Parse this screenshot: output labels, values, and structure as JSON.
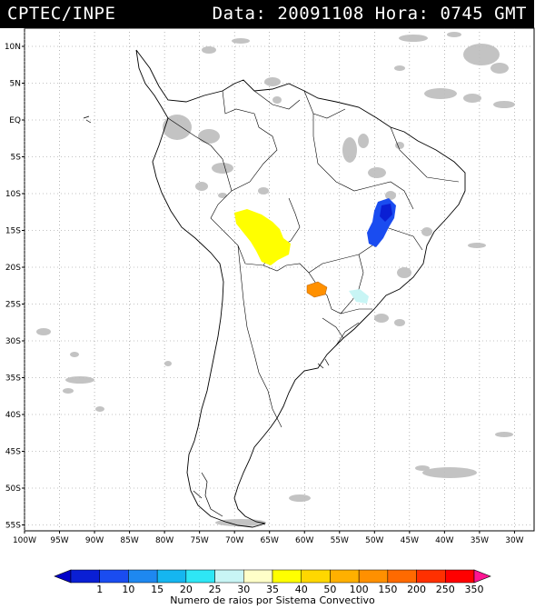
{
  "header": {
    "left_title": "CPTEC/INPE",
    "data_label": "Data:",
    "date": "20091108",
    "hora_label": "Hora:",
    "time": "0745",
    "tz": "GMT"
  },
  "axes": {
    "lat_labels": [
      "10N",
      "5N",
      "EQ",
      "5S",
      "10S",
      "15S",
      "20S",
      "25S",
      "30S",
      "35S",
      "40S",
      "45S",
      "50S",
      "55S"
    ],
    "lon_labels": [
      "100W",
      "95W",
      "90W",
      "85W",
      "80W",
      "75W",
      "70W",
      "65W",
      "60W",
      "55W",
      "50W",
      "45W",
      "40W",
      "35W",
      "30W"
    ]
  },
  "legend": {
    "caption": "Numero de raios por Sistema Convectivo",
    "bins": [
      {
        "label": "1",
        "color": "#0a1fd4"
      },
      {
        "label": "10",
        "color": "#1a4cf0"
      },
      {
        "label": "15",
        "color": "#1e88f0"
      },
      {
        "label": "20",
        "color": "#15b6f0"
      },
      {
        "label": "25",
        "color": "#2ee6f5"
      },
      {
        "label": "30",
        "color": "#c8f5f5"
      },
      {
        "label": "35",
        "color": "#ffffc8"
      },
      {
        "label": "40",
        "color": "#ffff00"
      },
      {
        "label": "50",
        "color": "#ffd700"
      },
      {
        "label": "100",
        "color": "#ffb000"
      },
      {
        "label": "150",
        "color": "#ff9000"
      },
      {
        "label": "200",
        "color": "#ff6a00"
      },
      {
        "label": "250",
        "color": "#ff3000"
      },
      {
        "label": "350",
        "color": "#ff0000"
      }
    ],
    "end_left_color": "#0000c8",
    "end_right_color": "#ff1493"
  },
  "colors": {
    "cloud": "#bdbdbd",
    "land_outline": "#000000",
    "grid": "#888888",
    "frame_bg": "#ffffff"
  }
}
